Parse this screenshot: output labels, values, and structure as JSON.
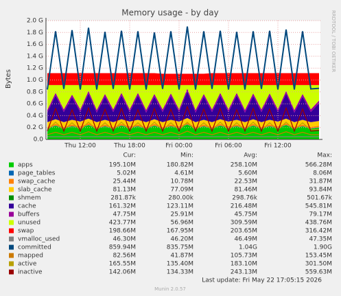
{
  "chart_data": {
    "type": "munin",
    "title": "Memory usage - by day",
    "ylabel": "Bytes",
    "side_text": "RRDTOOL / TOBI OETIKER",
    "categories": [
      null,
      null,
      null,
      null,
      "Thu 12:00",
      null,
      null,
      null,
      null,
      null,
      "Thu 18:00",
      null,
      null,
      null,
      null,
      null,
      "Fri 00:00",
      null,
      null,
      null,
      null,
      null,
      "Fri 06:00",
      null,
      null,
      null,
      null,
      null,
      "Fri 12:00",
      null,
      null,
      null,
      null,
      null
    ],
    "ylim": [
      0,
      2.0
    ],
    "yticks": [
      {
        "value": 0.0,
        "label": "0.0"
      },
      {
        "value": 0.2,
        "label": "0.2 G"
      },
      {
        "value": 0.4,
        "label": "0.4 G"
      },
      {
        "value": 0.6,
        "label": "0.6 G"
      },
      {
        "value": 0.8,
        "label": "0.8 G"
      },
      {
        "value": 1.0,
        "label": "1.0 G"
      },
      {
        "value": 1.2,
        "label": "1.2 G"
      },
      {
        "value": 1.4,
        "label": "1.4 G"
      },
      {
        "value": 1.6,
        "label": "1.6 G"
      },
      {
        "value": 1.8,
        "label": "1.8 G"
      },
      {
        "value": 2.0,
        "label": "2.0 G"
      }
    ],
    "grid": true,
    "legend_headers": [
      "Cur:",
      "Min:",
      "Avg:",
      "Max:"
    ],
    "series": [
      {
        "name": "apps",
        "color": "#00cc00",
        "style": "area",
        "cur": "195.10M",
        "min": "180.82M",
        "avg": "258.10M",
        "max": "566.28M",
        "values": [
          0.18,
          0.23,
          0.18,
          0.22,
          0.19,
          0.24,
          0.18,
          0.22,
          0.18,
          0.23,
          0.19,
          0.22,
          0.18,
          0.23,
          0.18,
          0.22,
          0.19,
          0.25,
          0.18,
          0.22,
          0.18,
          0.23,
          0.19,
          0.22,
          0.18,
          0.23,
          0.18,
          0.22,
          0.19,
          0.24,
          0.18,
          0.22,
          0.18,
          0.2
        ]
      },
      {
        "name": "page_tables",
        "color": "#0066b3",
        "style": "area",
        "cur": "5.02M",
        "min": "4.61M",
        "avg": "5.60M",
        "max": "8.06M",
        "values": [
          0.005,
          0.005,
          0.005,
          0.005,
          0.005,
          0.005,
          0.005,
          0.005,
          0.005,
          0.005,
          0.005,
          0.005,
          0.005,
          0.005,
          0.005,
          0.005,
          0.005,
          0.005,
          0.005,
          0.005,
          0.005,
          0.005,
          0.005,
          0.005,
          0.005,
          0.005,
          0.005,
          0.005,
          0.005,
          0.005,
          0.005,
          0.005,
          0.005,
          0.005
        ]
      },
      {
        "name": "swap_cache",
        "color": "#ff8000",
        "style": "area",
        "cur": "25.44M",
        "min": "10.78M",
        "avg": "22.53M",
        "max": "31.87M",
        "values": [
          0.025,
          0.025,
          0.025,
          0.025,
          0.025,
          0.025,
          0.025,
          0.025,
          0.025,
          0.025,
          0.025,
          0.025,
          0.025,
          0.025,
          0.025,
          0.025,
          0.025,
          0.025,
          0.025,
          0.025,
          0.025,
          0.025,
          0.025,
          0.025,
          0.025,
          0.025,
          0.025,
          0.025,
          0.025,
          0.025,
          0.025,
          0.025,
          0.025,
          0.025
        ]
      },
      {
        "name": "slab_cache",
        "color": "#ffcc00",
        "style": "area",
        "cur": "81.13M",
        "min": "77.09M",
        "avg": "81.46M",
        "max": "93.84M",
        "values": [
          0.08,
          0.08,
          0.08,
          0.08,
          0.08,
          0.08,
          0.08,
          0.08,
          0.08,
          0.08,
          0.08,
          0.08,
          0.08,
          0.08,
          0.08,
          0.08,
          0.08,
          0.08,
          0.08,
          0.08,
          0.08,
          0.08,
          0.08,
          0.08,
          0.08,
          0.08,
          0.08,
          0.08,
          0.08,
          0.08,
          0.08,
          0.08,
          0.08,
          0.08
        ]
      },
      {
        "name": "shmem",
        "color": "#008f00",
        "style": "area",
        "cur": "281.87k",
        "min": "280.00k",
        "avg": "298.76k",
        "max": "501.67k",
        "values": [
          0.0003,
          0.0003,
          0.0003,
          0.0003,
          0.0003,
          0.0003,
          0.0003,
          0.0003,
          0.0003,
          0.0003,
          0.0003,
          0.0003,
          0.0003,
          0.0003,
          0.0003,
          0.0003,
          0.0003,
          0.0003,
          0.0003,
          0.0003,
          0.0003,
          0.0003,
          0.0003,
          0.0003,
          0.0003,
          0.0003,
          0.0003,
          0.0003,
          0.0003,
          0.0003,
          0.0003,
          0.0003,
          0.0003,
          0.0003
        ]
      },
      {
        "name": "cache",
        "color": "#330099",
        "style": "area",
        "cur": "161.32M",
        "min": "123.11M",
        "avg": "216.48M",
        "max": "545.81M",
        "values": [
          0.16,
          0.4,
          0.17,
          0.38,
          0.16,
          0.42,
          0.16,
          0.39,
          0.17,
          0.4,
          0.16,
          0.41,
          0.16,
          0.38,
          0.17,
          0.4,
          0.16,
          0.45,
          0.16,
          0.39,
          0.17,
          0.4,
          0.16,
          0.41,
          0.16,
          0.39,
          0.17,
          0.4,
          0.16,
          0.42,
          0.16,
          0.39,
          0.17,
          0.3
        ]
      },
      {
        "name": "buffers",
        "color": "#990099",
        "style": "area",
        "cur": "47.75M",
        "min": "25.91M",
        "avg": "45.75M",
        "max": "79.17M",
        "values": [
          0.045,
          0.045,
          0.045,
          0.045,
          0.045,
          0.045,
          0.045,
          0.045,
          0.045,
          0.045,
          0.045,
          0.045,
          0.045,
          0.045,
          0.045,
          0.045,
          0.045,
          0.045,
          0.045,
          0.045,
          0.045,
          0.045,
          0.045,
          0.045,
          0.045,
          0.045,
          0.045,
          0.045,
          0.045,
          0.045,
          0.045,
          0.045,
          0.045,
          0.045
        ]
      },
      {
        "name": "unused",
        "color": "#ccff00",
        "style": "area",
        "cur": "423.77M",
        "min": "56.96M",
        "avg": "309.59M",
        "max": "438.76M",
        "values": [
          0.42,
          0.13,
          0.41,
          0.16,
          0.41,
          0.1,
          0.42,
          0.15,
          0.41,
          0.13,
          0.41,
          0.13,
          0.42,
          0.15,
          0.41,
          0.14,
          0.41,
          0.06,
          0.42,
          0.15,
          0.41,
          0.13,
          0.41,
          0.13,
          0.42,
          0.14,
          0.41,
          0.14,
          0.41,
          0.1,
          0.42,
          0.15,
          0.41,
          0.26
        ]
      },
      {
        "name": "swap",
        "color": "#ff0000",
        "style": "area",
        "cur": "198.66M",
        "min": "167.95M",
        "avg": "203.65M",
        "max": "316.42M",
        "values": [
          0.2,
          0.2,
          0.2,
          0.2,
          0.2,
          0.2,
          0.2,
          0.2,
          0.2,
          0.2,
          0.2,
          0.2,
          0.2,
          0.2,
          0.19,
          0.19,
          0.19,
          0.19,
          0.19,
          0.19,
          0.2,
          0.2,
          0.2,
          0.2,
          0.2,
          0.2,
          0.2,
          0.2,
          0.2,
          0.2,
          0.2,
          0.2,
          0.2,
          0.2
        ]
      },
      {
        "name": "vmalloc_used",
        "color": "#808080",
        "style": "line",
        "cur": "46.30M",
        "min": "46.20M",
        "avg": "46.49M",
        "max": "47.35M",
        "values": [
          0.046,
          0.046,
          0.046,
          0.046,
          0.046,
          0.046,
          0.046,
          0.046,
          0.046,
          0.046,
          0.046,
          0.046,
          0.046,
          0.046,
          0.046,
          0.046,
          0.046,
          0.046,
          0.046,
          0.046,
          0.046,
          0.046,
          0.046,
          0.046,
          0.046,
          0.046,
          0.046,
          0.046,
          0.046,
          0.046,
          0.046,
          0.046,
          0.046,
          0.046
        ]
      },
      {
        "name": "committed",
        "color": "#00487d",
        "style": "line",
        "cur": "859.94M",
        "min": "835.75M",
        "avg": "1.04G",
        "max": "1.90G",
        "values": [
          0.84,
          1.82,
          0.85,
          1.84,
          0.84,
          1.88,
          0.84,
          1.81,
          0.85,
          1.83,
          0.84,
          1.82,
          0.84,
          1.8,
          0.85,
          1.82,
          0.84,
          1.9,
          0.84,
          1.82,
          0.85,
          1.83,
          0.84,
          1.81,
          0.84,
          1.82,
          0.85,
          1.83,
          0.84,
          1.85,
          0.84,
          1.82,
          0.85,
          0.86
        ]
      },
      {
        "name": "mapped",
        "color": "#cc7a00",
        "style": "line",
        "cur": "82.56M",
        "min": "41.87M",
        "avg": "105.73M",
        "max": "153.45M",
        "values": [
          0.08,
          0.12,
          0.08,
          0.12,
          0.08,
          0.13,
          0.08,
          0.12,
          0.08,
          0.12,
          0.08,
          0.12,
          0.08,
          0.12,
          0.08,
          0.12,
          0.08,
          0.14,
          0.08,
          0.12,
          0.08,
          0.12,
          0.08,
          0.12,
          0.08,
          0.12,
          0.08,
          0.12,
          0.08,
          0.13,
          0.08,
          0.12,
          0.08,
          0.08
        ]
      },
      {
        "name": "active",
        "color": "#b8a000",
        "style": "line",
        "cur": "165.55M",
        "min": "135.40M",
        "avg": "183.10M",
        "max": "301.50M",
        "values": [
          0.16,
          0.29,
          0.16,
          0.28,
          0.16,
          0.29,
          0.16,
          0.28,
          0.16,
          0.29,
          0.16,
          0.28,
          0.16,
          0.29,
          0.16,
          0.28,
          0.16,
          0.29,
          0.16,
          0.28,
          0.16,
          0.29,
          0.16,
          0.28,
          0.16,
          0.29,
          0.16,
          0.28,
          0.16,
          0.29,
          0.16,
          0.28,
          0.16,
          0.17
        ]
      },
      {
        "name": "inactive",
        "color": "#990000",
        "style": "line",
        "cur": "142.06M",
        "min": "134.33M",
        "avg": "243.13M",
        "max": "559.63M",
        "values": [
          0.14,
          0.52,
          0.14,
          0.5,
          0.14,
          0.53,
          0.14,
          0.51,
          0.14,
          0.52,
          0.14,
          0.5,
          0.14,
          0.52,
          0.14,
          0.51,
          0.14,
          0.55,
          0.14,
          0.51,
          0.14,
          0.52,
          0.14,
          0.5,
          0.14,
          0.52,
          0.14,
          0.51,
          0.14,
          0.53,
          0.14,
          0.51,
          0.14,
          0.15
        ]
      }
    ],
    "last_update": "Last update: Fri May 22 17:05:15 2026",
    "footer": "Munin 2.0.57"
  }
}
